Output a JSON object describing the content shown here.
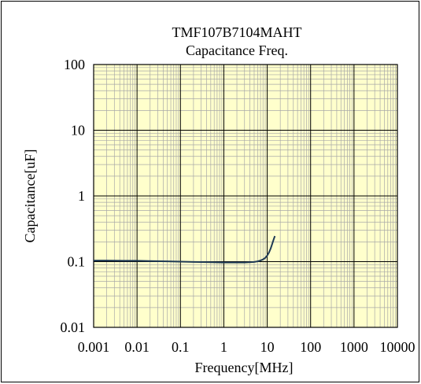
{
  "chart_data": {
    "type": "line",
    "title": "TMF107B7104MAHT",
    "subtitle": "Capacitance Freq.",
    "xlabel": "Frequency[MHz]",
    "ylabel": "Capacitance[uF]",
    "x_scale": "log",
    "y_scale": "log",
    "xlim": [
      0.001,
      10000
    ],
    "ylim": [
      0.01,
      100
    ],
    "x_ticks": [
      "0.001",
      "0.01",
      "0.1",
      "1",
      "10",
      "100",
      "1000",
      "10000"
    ],
    "y_ticks": [
      "100",
      "10",
      "1",
      "0.1",
      "0.01"
    ],
    "grid": true,
    "plot_background": "#ffffcc",
    "line_color": "#1f3a55",
    "series": [
      {
        "x": [
          0.001,
          0.002,
          0.005,
          0.01,
          0.02,
          0.05,
          0.1,
          0.2,
          0.5,
          1,
          2,
          3,
          4,
          5,
          6,
          7,
          8,
          9,
          10,
          11,
          12,
          13,
          14,
          15
        ],
        "y": [
          0.104,
          0.104,
          0.103,
          0.103,
          0.102,
          0.101,
          0.1,
          0.099,
          0.098,
          0.097,
          0.097,
          0.097,
          0.098,
          0.099,
          0.101,
          0.104,
          0.108,
          0.114,
          0.124,
          0.138,
          0.158,
          0.185,
          0.215,
          0.245
        ]
      }
    ]
  }
}
